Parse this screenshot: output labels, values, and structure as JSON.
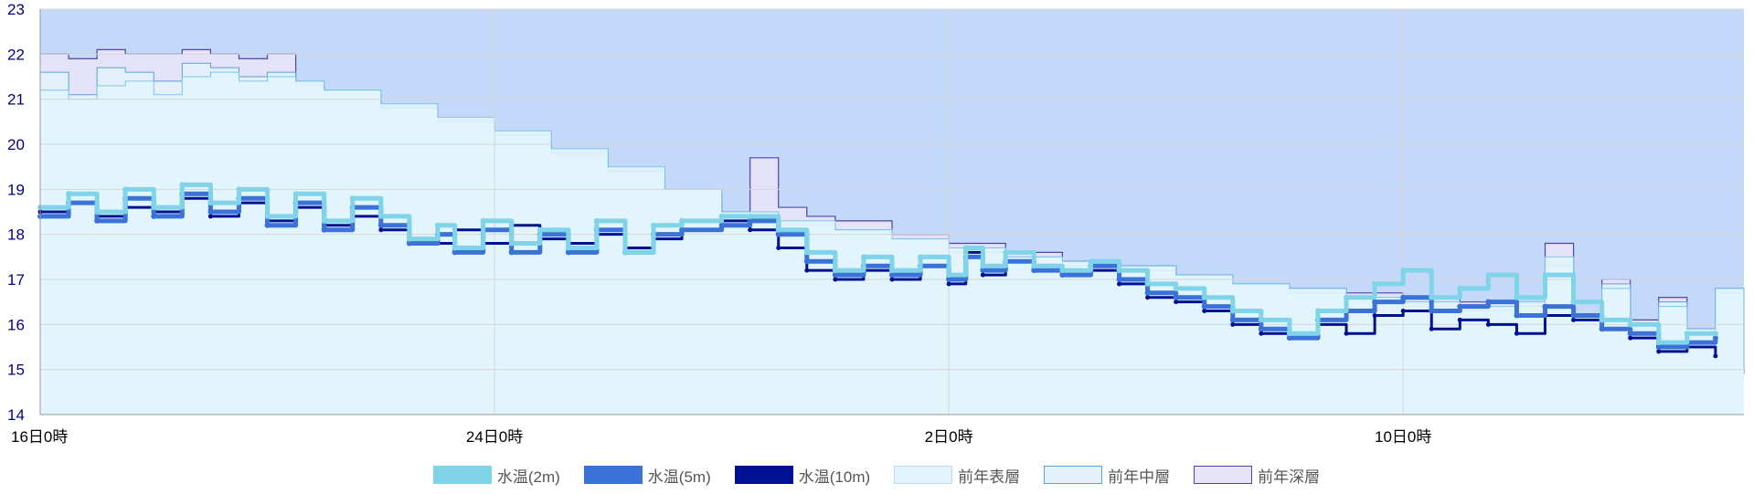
{
  "chart_data": {
    "type": "line",
    "y_ticks": [
      "23",
      "22",
      "21",
      "20",
      "19",
      "18",
      "17",
      "16",
      "15",
      "14"
    ],
    "ylim": [
      14,
      23
    ],
    "x_ticks": [
      {
        "label": "16日0時",
        "day": 0
      },
      {
        "label": "24日0時",
        "day": 8
      },
      {
        "label": "2日0時",
        "day": 16
      },
      {
        "label": "10日0時",
        "day": 24
      }
    ],
    "xlim": [
      0,
      30
    ],
    "grid": true,
    "legend_position": "bottom",
    "series": [
      {
        "name": "水温(2m)",
        "kind": "line",
        "color": "#7fd4ea",
        "stroke": "#7fd4ea",
        "width": 5,
        "points": [
          [
            0,
            18.6
          ],
          [
            0.5,
            18.9
          ],
          [
            1,
            18.5
          ],
          [
            1.5,
            19.0
          ],
          [
            2,
            18.6
          ],
          [
            2.5,
            19.1
          ],
          [
            3,
            18.7
          ],
          [
            3.5,
            19.0
          ],
          [
            4,
            18.4
          ],
          [
            4.5,
            18.9
          ],
          [
            5,
            18.3
          ],
          [
            5.5,
            18.8
          ],
          [
            6,
            18.4
          ],
          [
            6.5,
            17.9
          ],
          [
            7,
            18.2
          ],
          [
            7.3,
            17.7
          ],
          [
            7.8,
            18.3
          ],
          [
            8.3,
            17.8
          ],
          [
            8.8,
            18.1
          ],
          [
            9.3,
            17.7
          ],
          [
            9.8,
            18.3
          ],
          [
            10.3,
            17.6
          ],
          [
            10.8,
            18.2
          ],
          [
            11.3,
            18.3
          ],
          [
            12,
            18.4
          ],
          [
            12.5,
            18.4
          ],
          [
            13,
            18.1
          ],
          [
            13.5,
            17.6
          ],
          [
            14,
            17.2
          ],
          [
            14.5,
            17.5
          ],
          [
            15,
            17.2
          ],
          [
            15.5,
            17.5
          ],
          [
            16,
            17.1
          ],
          [
            16.3,
            17.7
          ],
          [
            16.6,
            17.3
          ],
          [
            17,
            17.6
          ],
          [
            17.5,
            17.3
          ],
          [
            18,
            17.2
          ],
          [
            18.5,
            17.4
          ],
          [
            19,
            17.2
          ],
          [
            19.5,
            16.9
          ],
          [
            20,
            16.8
          ],
          [
            20.5,
            16.6
          ],
          [
            21,
            16.3
          ],
          [
            21.5,
            16.1
          ],
          [
            22,
            15.8
          ],
          [
            22.5,
            16.3
          ],
          [
            23,
            16.6
          ],
          [
            23.5,
            16.9
          ],
          [
            24,
            17.2
          ],
          [
            24.5,
            16.6
          ],
          [
            25,
            16.8
          ],
          [
            25.5,
            17.1
          ],
          [
            26,
            16.6
          ],
          [
            26.5,
            17.1
          ],
          [
            27,
            16.5
          ],
          [
            27.5,
            16.1
          ],
          [
            28,
            16.0
          ],
          [
            28.5,
            15.6
          ],
          [
            29,
            15.8
          ],
          [
            29.5,
            15.8
          ]
        ]
      },
      {
        "name": "水温(5m)",
        "kind": "line",
        "color": "#3a72d8",
        "stroke": "#3a72d8",
        "width": 5,
        "points": [
          [
            0,
            18.4
          ],
          [
            0.5,
            18.7
          ],
          [
            1,
            18.3
          ],
          [
            1.5,
            18.8
          ],
          [
            2,
            18.4
          ],
          [
            2.5,
            18.9
          ],
          [
            3,
            18.5
          ],
          [
            3.5,
            18.8
          ],
          [
            4,
            18.2
          ],
          [
            4.5,
            18.7
          ],
          [
            5,
            18.1
          ],
          [
            5.5,
            18.6
          ],
          [
            6,
            18.2
          ],
          [
            6.5,
            17.8
          ],
          [
            7,
            18.0
          ],
          [
            7.3,
            17.6
          ],
          [
            7.8,
            18.1
          ],
          [
            8.3,
            17.6
          ],
          [
            8.8,
            18.0
          ],
          [
            9.3,
            17.6
          ],
          [
            9.8,
            18.1
          ],
          [
            10.3,
            17.6
          ],
          [
            10.8,
            18.0
          ],
          [
            11.3,
            18.1
          ],
          [
            12,
            18.2
          ],
          [
            12.5,
            18.3
          ],
          [
            13,
            18.0
          ],
          [
            13.5,
            17.4
          ],
          [
            14,
            17.1
          ],
          [
            14.5,
            17.3
          ],
          [
            15,
            17.1
          ],
          [
            15.5,
            17.3
          ],
          [
            16,
            17.0
          ],
          [
            16.3,
            17.5
          ],
          [
            16.6,
            17.2
          ],
          [
            17,
            17.4
          ],
          [
            17.5,
            17.2
          ],
          [
            18,
            17.1
          ],
          [
            18.5,
            17.3
          ],
          [
            19,
            17.0
          ],
          [
            19.5,
            16.7
          ],
          [
            20,
            16.6
          ],
          [
            20.5,
            16.4
          ],
          [
            21,
            16.1
          ],
          [
            21.5,
            15.9
          ],
          [
            22,
            15.7
          ],
          [
            22.5,
            16.1
          ],
          [
            23,
            16.3
          ],
          [
            23.5,
            16.5
          ],
          [
            24,
            16.6
          ],
          [
            24.5,
            16.3
          ],
          [
            25,
            16.4
          ],
          [
            25.5,
            16.5
          ],
          [
            26,
            16.2
          ],
          [
            26.5,
            16.4
          ],
          [
            27,
            16.2
          ],
          [
            27.5,
            15.9
          ],
          [
            28,
            15.8
          ],
          [
            28.5,
            15.5
          ],
          [
            29,
            15.6
          ],
          [
            29.5,
            15.7
          ]
        ]
      },
      {
        "name": "水温(10m)",
        "kind": "line",
        "color": "#001090",
        "stroke": "#001090",
        "width": 3,
        "points": [
          [
            0,
            18.5
          ],
          [
            0.5,
            18.7
          ],
          [
            1,
            18.4
          ],
          [
            1.5,
            18.6
          ],
          [
            2,
            18.5
          ],
          [
            2.5,
            18.8
          ],
          [
            3,
            18.4
          ],
          [
            3.5,
            18.7
          ],
          [
            4,
            18.3
          ],
          [
            4.5,
            18.6
          ],
          [
            5,
            18.2
          ],
          [
            5.5,
            18.4
          ],
          [
            6,
            18.1
          ],
          [
            6.5,
            17.9
          ],
          [
            7,
            17.8
          ],
          [
            7.3,
            18.1
          ],
          [
            7.8,
            17.8
          ],
          [
            8.3,
            18.2
          ],
          [
            8.8,
            17.9
          ],
          [
            9.3,
            17.8
          ],
          [
            9.8,
            18.0
          ],
          [
            10.3,
            17.7
          ],
          [
            10.8,
            17.9
          ],
          [
            11.3,
            18.1
          ],
          [
            12,
            18.3
          ],
          [
            12.5,
            18.1
          ],
          [
            13,
            17.7
          ],
          [
            13.5,
            17.2
          ],
          [
            14,
            17.0
          ],
          [
            14.5,
            17.2
          ],
          [
            15,
            17.0
          ],
          [
            15.5,
            17.3
          ],
          [
            16,
            16.9
          ],
          [
            16.3,
            17.6
          ],
          [
            16.6,
            17.1
          ],
          [
            17,
            17.6
          ],
          [
            17.5,
            17.2
          ],
          [
            18,
            17.1
          ],
          [
            18.5,
            17.2
          ],
          [
            19,
            16.9
          ],
          [
            19.5,
            16.6
          ],
          [
            20,
            16.5
          ],
          [
            20.5,
            16.3
          ],
          [
            21,
            16.0
          ],
          [
            21.5,
            15.8
          ],
          [
            22,
            15.7
          ],
          [
            22.5,
            16.0
          ],
          [
            23,
            15.8
          ],
          [
            23.5,
            16.2
          ],
          [
            24,
            16.3
          ],
          [
            24.5,
            15.9
          ],
          [
            25,
            16.1
          ],
          [
            25.5,
            16.0
          ],
          [
            26,
            15.8
          ],
          [
            26.5,
            16.2
          ],
          [
            27,
            16.1
          ],
          [
            27.5,
            15.9
          ],
          [
            28,
            15.7
          ],
          [
            28.5,
            15.4
          ],
          [
            29,
            15.5
          ],
          [
            29.5,
            15.3
          ]
        ]
      },
      {
        "name": "前年表層",
        "kind": "area",
        "color": "#b8dcf0",
        "fill": "#e1f4fc",
        "stroke": "#7cc6ea",
        "width": 1,
        "points": [
          [
            0,
            21.2
          ],
          [
            0.5,
            21.0
          ],
          [
            1,
            21.3
          ],
          [
            1.5,
            21.4
          ],
          [
            2,
            21.1
          ],
          [
            2.5,
            21.5
          ],
          [
            3,
            21.6
          ],
          [
            3.5,
            21.4
          ],
          [
            4,
            21.5
          ],
          [
            4.5,
            21.4
          ],
          [
            5,
            21.2
          ],
          [
            6,
            20.9
          ],
          [
            7,
            20.6
          ],
          [
            8,
            20.3
          ],
          [
            9,
            19.9
          ],
          [
            10,
            19.5
          ],
          [
            11,
            19.0
          ],
          [
            12,
            18.5
          ],
          [
            13,
            18.3
          ],
          [
            14,
            18.1
          ],
          [
            15,
            17.9
          ],
          [
            16,
            17.7
          ],
          [
            17,
            17.5
          ],
          [
            18,
            17.4
          ],
          [
            19,
            17.3
          ],
          [
            20,
            17.1
          ],
          [
            21,
            16.9
          ],
          [
            22,
            16.8
          ],
          [
            23,
            16.6
          ],
          [
            24,
            16.5
          ],
          [
            25,
            16.4
          ],
          [
            26,
            16.5
          ],
          [
            26.5,
            17.5
          ],
          [
            27,
            16.2
          ],
          [
            27.5,
            16.8
          ],
          [
            28,
            16.0
          ],
          [
            28.5,
            16.4
          ],
          [
            29,
            15.9
          ],
          [
            29.5,
            16.8
          ],
          [
            30,
            15.0
          ]
        ]
      },
      {
        "name": "前年中層",
        "kind": "area",
        "color": "#cfe8f4",
        "fill": "#e3f2fa",
        "stroke": "#5b9fd6",
        "width": 1,
        "points": [
          [
            0,
            21.6
          ],
          [
            0.5,
            21.1
          ],
          [
            1,
            21.7
          ],
          [
            1.5,
            21.6
          ],
          [
            2,
            21.4
          ],
          [
            2.5,
            21.8
          ],
          [
            3,
            21.7
          ],
          [
            3.5,
            21.5
          ],
          [
            4,
            21.6
          ],
          [
            4.5,
            21.4
          ],
          [
            5,
            21.2
          ],
          [
            6,
            20.8
          ],
          [
            7,
            20.5
          ],
          [
            8,
            20.2
          ],
          [
            9,
            19.8
          ],
          [
            10,
            19.4
          ],
          [
            11,
            19.0
          ],
          [
            12,
            18.4
          ],
          [
            13,
            18.2
          ],
          [
            14,
            18.1
          ],
          [
            15,
            17.9
          ],
          [
            16,
            17.6
          ],
          [
            17,
            17.5
          ],
          [
            18,
            17.3
          ],
          [
            19,
            17.2
          ],
          [
            20,
            17.0
          ],
          [
            21,
            16.9
          ],
          [
            22,
            16.7
          ],
          [
            23,
            16.6
          ],
          [
            24,
            16.4
          ],
          [
            25,
            16.3
          ],
          [
            26,
            16.4
          ],
          [
            26.5,
            17.3
          ],
          [
            27,
            16.1
          ],
          [
            27.5,
            16.9
          ],
          [
            28,
            15.9
          ],
          [
            28.5,
            16.5
          ],
          [
            29,
            15.8
          ],
          [
            29.5,
            16.7
          ],
          [
            30,
            14.9
          ]
        ]
      },
      {
        "name": "前年深層",
        "kind": "area",
        "color": "#dcdcf8",
        "fill": "#e8e4f8",
        "stroke": "#4a46a8",
        "width": 1.2,
        "points": [
          [
            0,
            22.0
          ],
          [
            0.5,
            21.9
          ],
          [
            1,
            22.1
          ],
          [
            1.5,
            22.0
          ],
          [
            2,
            22.0
          ],
          [
            2.5,
            22.1
          ],
          [
            3,
            22.0
          ],
          [
            3.5,
            21.9
          ],
          [
            4,
            22.0
          ],
          [
            4.5,
            21.3
          ],
          [
            5,
            21.1
          ],
          [
            6,
            20.8
          ],
          [
            7,
            20.4
          ],
          [
            8,
            20.0
          ],
          [
            9,
            19.7
          ],
          [
            10,
            19.3
          ],
          [
            11,
            18.9
          ],
          [
            12,
            18.5
          ],
          [
            12.5,
            19.7
          ],
          [
            13,
            18.6
          ],
          [
            13.5,
            18.4
          ],
          [
            14,
            18.3
          ],
          [
            15,
            18.0
          ],
          [
            16,
            17.8
          ],
          [
            17,
            17.6
          ],
          [
            18,
            17.4
          ],
          [
            19,
            17.3
          ],
          [
            20,
            17.1
          ],
          [
            21,
            16.9
          ],
          [
            22,
            16.8
          ],
          [
            23,
            16.7
          ],
          [
            24,
            16.6
          ],
          [
            25,
            16.5
          ],
          [
            26,
            16.4
          ],
          [
            26.5,
            17.8
          ],
          [
            27,
            16.2
          ],
          [
            27.5,
            17.0
          ],
          [
            28,
            16.1
          ],
          [
            28.5,
            16.6
          ],
          [
            29,
            15.9
          ],
          [
            29.5,
            16.8
          ],
          [
            30,
            14.9
          ]
        ]
      }
    ]
  }
}
